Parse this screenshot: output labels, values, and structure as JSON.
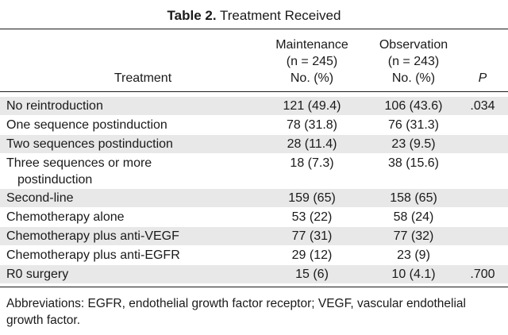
{
  "caption": {
    "label": "Table 2.",
    "title": "Treatment Received"
  },
  "columns": {
    "treatment": "Treatment",
    "maintenance": {
      "name": "Maintenance",
      "n": "(n = 245)",
      "unit": "No. (%)"
    },
    "observation": {
      "name": "Observation",
      "n": "(n = 243)",
      "unit": "No. (%)"
    },
    "p": "P"
  },
  "rows": [
    {
      "label": "No reintroduction",
      "maintenance": "121 (49.4)",
      "observation": "106 (43.6)",
      "p": ".034"
    },
    {
      "label": "One sequence postinduction",
      "maintenance": "78 (31.8)",
      "observation": "76 (31.3)",
      "p": ""
    },
    {
      "label": "Two sequences postinduction",
      "maintenance": "28 (11.4)",
      "observation": "23 (9.5)",
      "p": ""
    },
    {
      "label": "Three sequences or more",
      "label_cont": "postinduction",
      "maintenance": "18 (7.3)",
      "observation": "38 (15.6)",
      "p": ""
    },
    {
      "label": "Second-line",
      "maintenance": "159 (65)",
      "observation": "158 (65)",
      "p": ""
    },
    {
      "label": "Chemotherapy alone",
      "maintenance": "53 (22)",
      "observation": "58 (24)",
      "p": ""
    },
    {
      "label": "Chemotherapy plus anti-VEGF",
      "maintenance": "77 (31)",
      "observation": "77 (32)",
      "p": ""
    },
    {
      "label": "Chemotherapy plus anti-EGFR",
      "maintenance": "29 (12)",
      "observation": "23 (9)",
      "p": ""
    },
    {
      "label": "R0 surgery",
      "maintenance": "15 (6)",
      "observation": "10 (4.1)",
      "p": ".700"
    }
  ],
  "footnote": "Abbreviations: EGFR, endothelial growth factor receptor; VEGF, vascular endothelial growth factor."
}
